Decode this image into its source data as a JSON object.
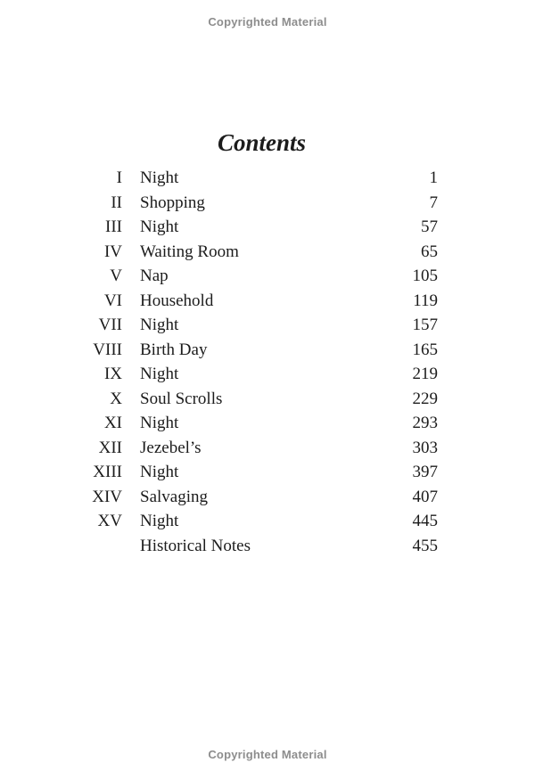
{
  "banners": {
    "top": "Copyrighted Material",
    "bottom": "Copyrighted Material"
  },
  "title": "Contents",
  "toc": {
    "entries": [
      {
        "numeral": "I",
        "title": "Night",
        "page": "1"
      },
      {
        "numeral": "II",
        "title": "Shopping",
        "page": "7"
      },
      {
        "numeral": "III",
        "title": "Night",
        "page": "57"
      },
      {
        "numeral": "IV",
        "title": "Waiting Room",
        "page": "65"
      },
      {
        "numeral": "V",
        "title": "Nap",
        "page": "105"
      },
      {
        "numeral": "VI",
        "title": "Household",
        "page": "119"
      },
      {
        "numeral": "VII",
        "title": "Night",
        "page": "157"
      },
      {
        "numeral": "VIII",
        "title": "Birth Day",
        "page": "165"
      },
      {
        "numeral": "IX",
        "title": "Night",
        "page": "219"
      },
      {
        "numeral": "X",
        "title": "Soul Scrolls",
        "page": "229"
      },
      {
        "numeral": "XI",
        "title": "Night",
        "page": "293"
      },
      {
        "numeral": "XII",
        "title": "Jezebel’s",
        "page": "303"
      },
      {
        "numeral": "XIII",
        "title": "Night",
        "page": "397"
      },
      {
        "numeral": "XIV",
        "title": "Salvaging",
        "page": "407"
      },
      {
        "numeral": "XV",
        "title": "Night",
        "page": "445"
      },
      {
        "numeral": "",
        "title": "Historical Notes",
        "page": "455"
      }
    ]
  },
  "colors": {
    "background": "#ffffff",
    "text": "#1c1c1c",
    "banner_text": "#8d8d8d"
  }
}
